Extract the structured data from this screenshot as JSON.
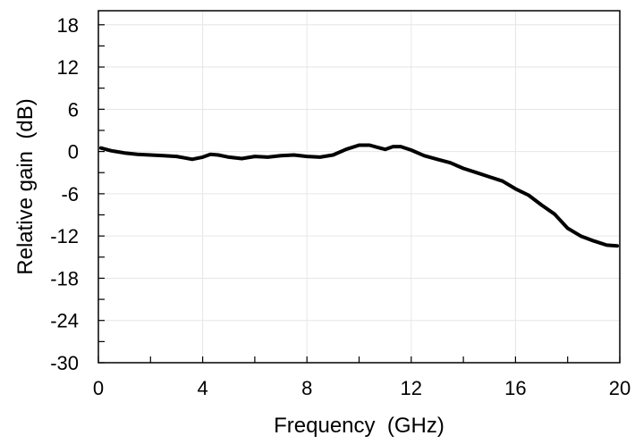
{
  "chart_data": {
    "type": "line",
    "title": "",
    "xlabel": "Frequency  (GHz)",
    "ylabel": "Relative gain  (dB)",
    "xlim": [
      0,
      20
    ],
    "ylim": [
      -30,
      20
    ],
    "x_ticks": [
      0,
      4,
      8,
      12,
      16,
      20
    ],
    "x_tick_labels": [
      "0",
      "4",
      "8",
      "12",
      "16",
      "20"
    ],
    "y_ticks": [
      -30,
      -24,
      -18,
      -12,
      -6,
      0,
      6,
      12,
      18
    ],
    "y_tick_labels": [
      "-30",
      "-24",
      "-18",
      "-12",
      "-6",
      "0",
      "6",
      "12",
      "18"
    ],
    "grid": true,
    "legend": "none",
    "series": [
      {
        "color": "#000000",
        "x": [
          0.1,
          0.5,
          1.0,
          1.5,
          2.0,
          2.5,
          3.0,
          3.3,
          3.6,
          4.0,
          4.3,
          4.6,
          5.0,
          5.5,
          6.0,
          6.5,
          7.0,
          7.5,
          8.0,
          8.5,
          9.0,
          9.5,
          10.0,
          10.4,
          10.8,
          11.0,
          11.3,
          11.6,
          12.0,
          12.5,
          13.0,
          13.5,
          14.0,
          14.5,
          15.0,
          15.5,
          16.0,
          16.5,
          17.0,
          17.5,
          18.0,
          18.5,
          19.0,
          19.5,
          19.9
        ],
        "y": [
          0.5,
          0.1,
          -0.2,
          -0.4,
          -0.5,
          -0.6,
          -0.7,
          -0.9,
          -1.1,
          -0.8,
          -0.4,
          -0.5,
          -0.8,
          -1.0,
          -0.7,
          -0.8,
          -0.6,
          -0.5,
          -0.7,
          -0.8,
          -0.5,
          0.3,
          0.9,
          0.9,
          0.5,
          0.3,
          0.7,
          0.7,
          0.2,
          -0.6,
          -1.1,
          -1.6,
          -2.4,
          -3.0,
          -3.6,
          -4.2,
          -5.3,
          -6.2,
          -7.6,
          -8.9,
          -10.9,
          -12.0,
          -12.7,
          -13.3,
          -13.4
        ]
      }
    ]
  }
}
